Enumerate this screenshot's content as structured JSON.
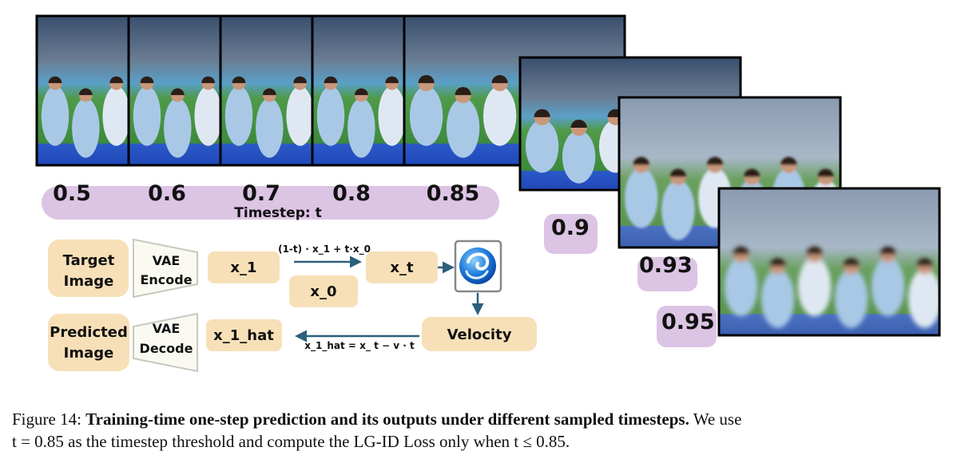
{
  "figure": {
    "timesteps": [
      "0.5",
      "0.6",
      "0.7",
      "0.8",
      "0.85"
    ],
    "timestep_axis": "Timestep: t",
    "stacked_timesteps": [
      "0.9",
      "0.93",
      "0.95"
    ],
    "diagram": {
      "target_image": [
        "Target",
        "Image"
      ],
      "vae_encode": [
        "VAE",
        "Encode"
      ],
      "x_1": "x_1",
      "interp_formula": "(1-t) · x_1 + t·x_0",
      "x_0": "x_0",
      "x_t": "x_t",
      "velocity": "Velocity",
      "predicted_image": [
        "Predicted",
        "Image"
      ],
      "vae_decode": [
        "VAE",
        "Decode"
      ],
      "x_1_hat": "x_1_hat",
      "hat_formula": "x_1_hat = x_ t − v · t"
    },
    "caption": {
      "label": "Figure 14:",
      "title": "Training-time one-step prediction and its outputs under different sampled timesteps.",
      "text": [
        "We use",
        "t = 0.85 as the timestep threshold and compute the LG-ID Loss only when t ≤ 0.85."
      ]
    }
  }
}
